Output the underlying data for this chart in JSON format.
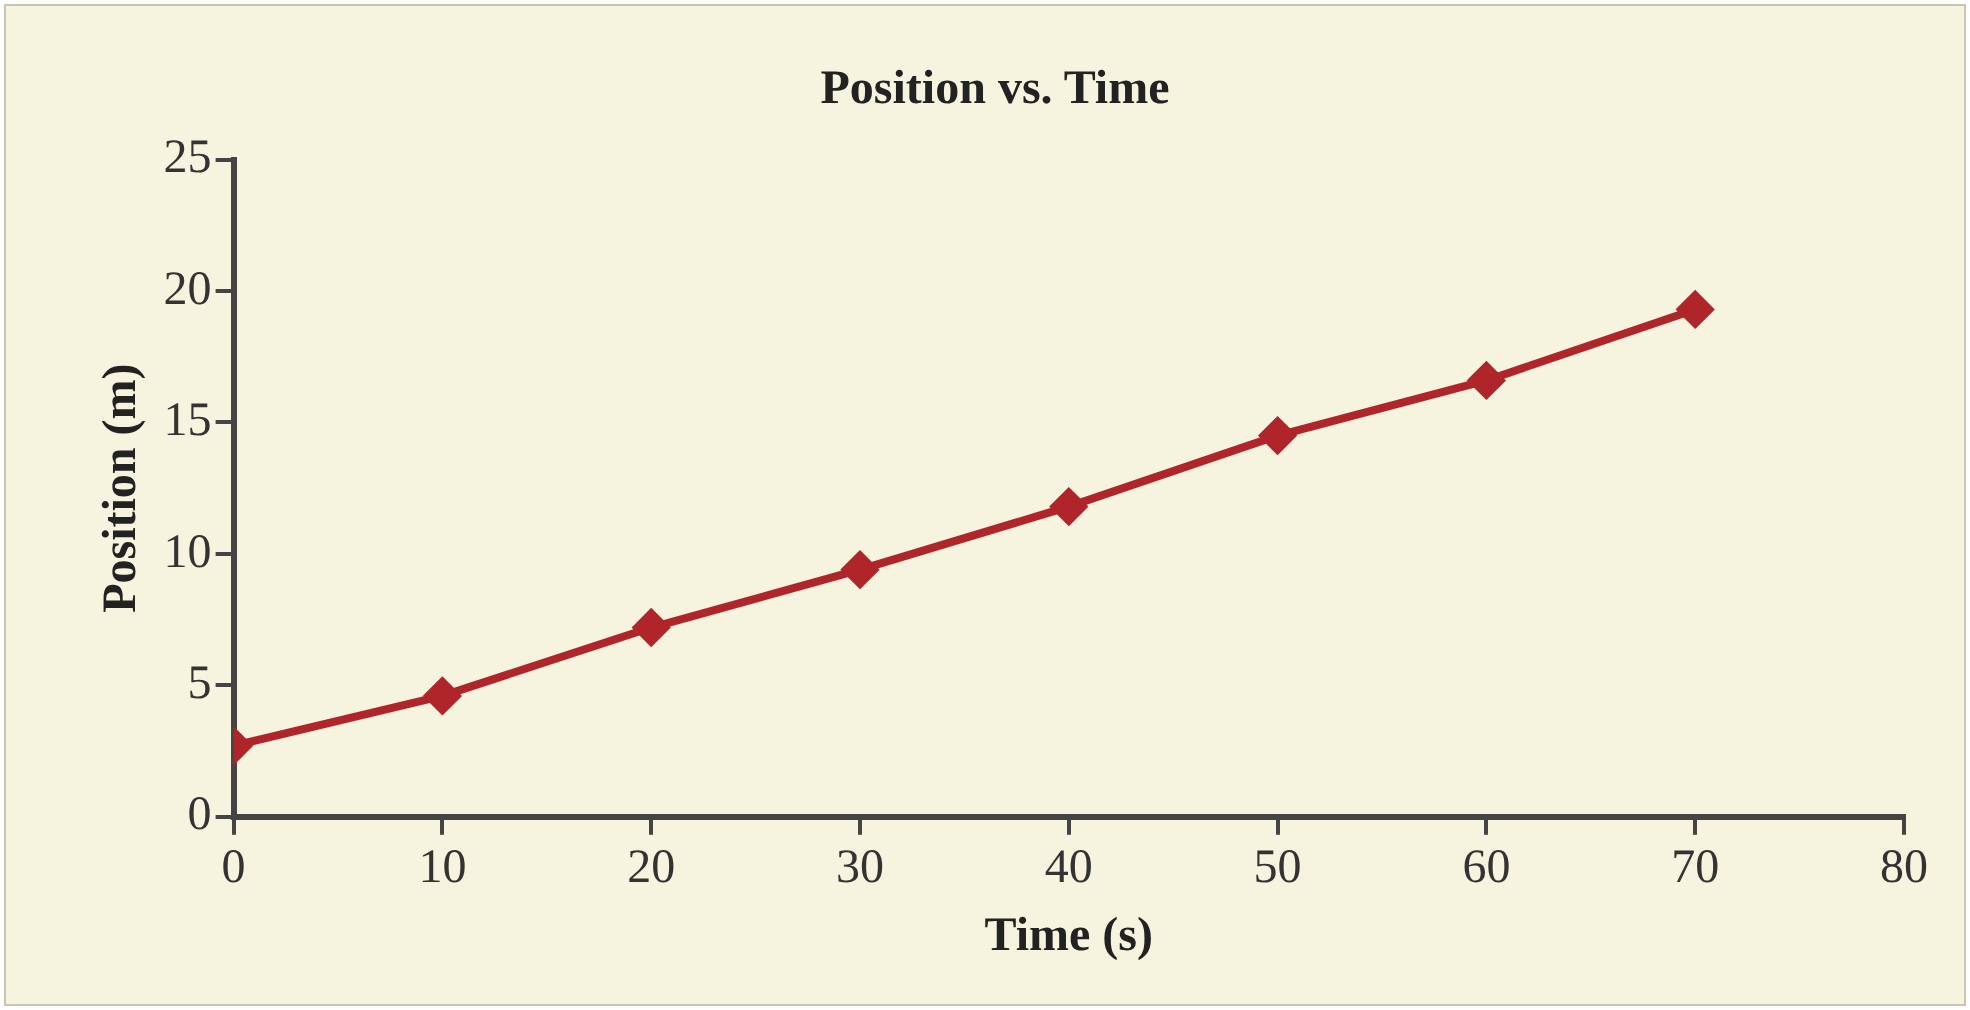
{
  "chart_data": {
    "type": "line",
    "title": "Position vs. Time",
    "xlabel": "Time (s)",
    "ylabel": "Position (m)",
    "x": [
      0,
      10,
      20,
      30,
      40,
      50,
      60,
      70
    ],
    "series": [
      {
        "color": "#b0252a",
        "values": [
          2.7,
          4.6,
          7.2,
          9.4,
          11.8,
          14.5,
          16.6,
          19.3
        ]
      }
    ],
    "xlim": [
      0,
      80
    ],
    "xticks": [
      0,
      10,
      20,
      30,
      40,
      50,
      60,
      70,
      80
    ],
    "ylim": [
      0,
      25
    ],
    "yticks": [
      0,
      5,
      10,
      15,
      20,
      25
    ],
    "grid": false,
    "legend": false,
    "marker": "diamond",
    "line_style": "solid"
  }
}
